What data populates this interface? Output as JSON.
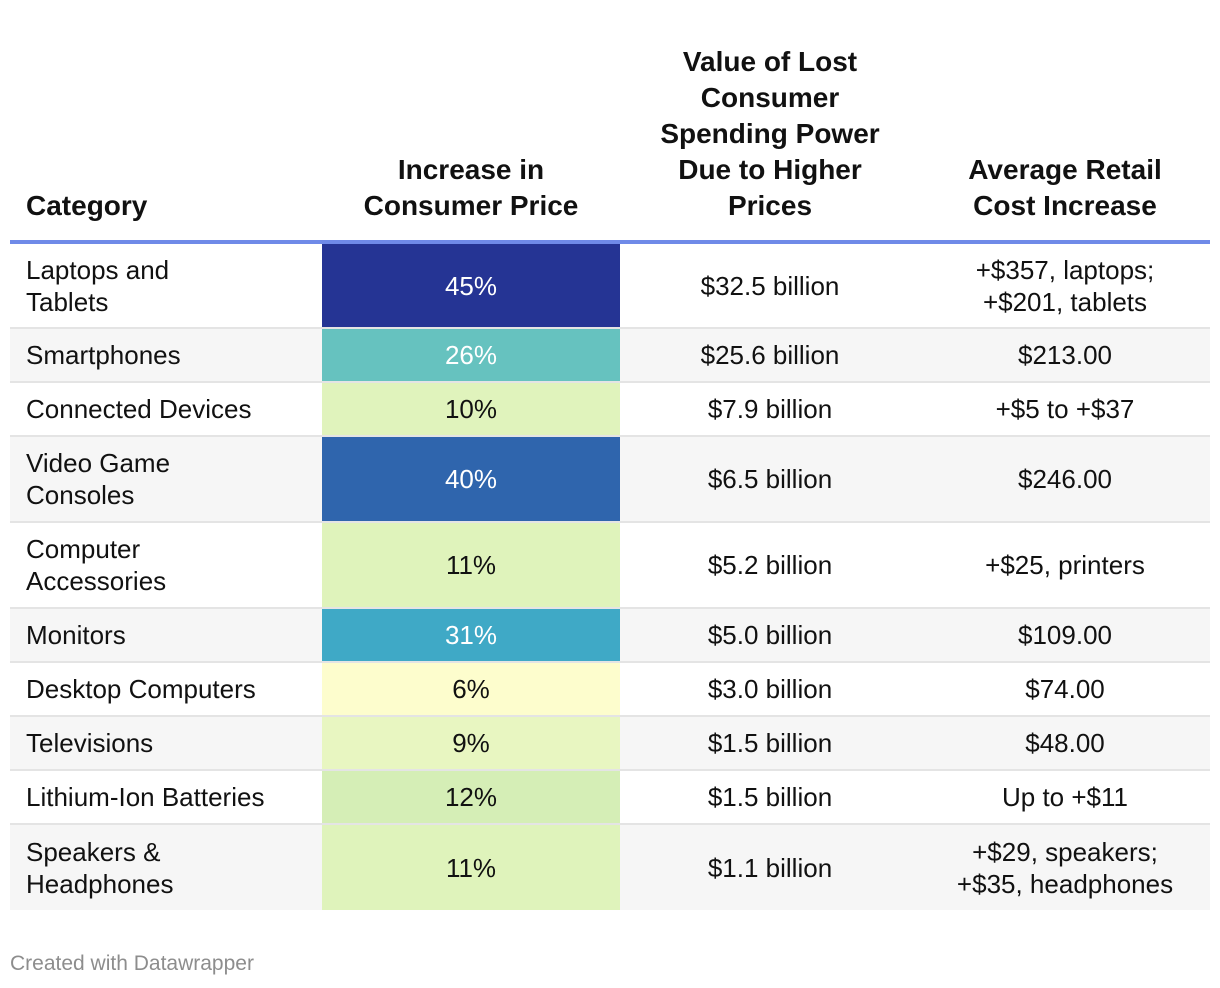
{
  "chart_data": {
    "type": "table",
    "columns": [
      "Category",
      "Increase in Consumer Price",
      "Value of Lost Consumer Spending Power Due to Higher Prices",
      "Average Retail Cost Increase"
    ],
    "rows": [
      {
        "category": "Laptops and Tablets",
        "increase": "45%",
        "increase_value": 45,
        "lost_value": "$32.5 billion",
        "retail_cost": [
          "+$357, laptops;",
          "+$201, tablets"
        ],
        "cell_color": "#253494",
        "height": 86
      },
      {
        "category": "Smartphones",
        "increase": "26%",
        "increase_value": 26,
        "lost_value": "$25.6 billion",
        "retail_cost": [
          "$213.00"
        ],
        "cell_color": "#66c2bf",
        "height": 54
      },
      {
        "category": "Connected Devices",
        "increase": "10%",
        "increase_value": 10,
        "lost_value": "$7.9 billion",
        "retail_cost": [
          "+$5 to +$37"
        ],
        "cell_color": "#e0f3bc",
        "height": 54
      },
      {
        "category": "Video Game Consoles",
        "increase": "40%",
        "increase_value": 40,
        "lost_value": "$6.5 billion",
        "retail_cost": [
          "$246.00"
        ],
        "cell_color": "#2f65ad",
        "height": 86
      },
      {
        "category": "Computer Accessories",
        "increase": "11%",
        "increase_value": 11,
        "lost_value": "$5.2 billion",
        "retail_cost": [
          "+$25, printers"
        ],
        "cell_color": "#dff3bb",
        "height": 86
      },
      {
        "category": "Monitors",
        "increase": "31%",
        "increase_value": 31,
        "lost_value": "$5.0 billion",
        "retail_cost": [
          "$109.00"
        ],
        "cell_color": "#3fa9c6",
        "height": 54
      },
      {
        "category": "Desktop Computers",
        "increase": "6%",
        "increase_value": 6,
        "lost_value": "$3.0 billion",
        "retail_cost": [
          "$74.00"
        ],
        "cell_color": "#fdfdcd",
        "height": 54
      },
      {
        "category": "Televisions",
        "increase": "9%",
        "increase_value": 9,
        "lost_value": "$1.5 billion",
        "retail_cost": [
          "$48.00"
        ],
        "cell_color": "#e8f6c1",
        "height": 54
      },
      {
        "category": "Lithium-Ion Batteries",
        "increase": "12%",
        "increase_value": 12,
        "lost_value": "$1.5 billion",
        "retail_cost": [
          "Up to +$11"
        ],
        "cell_color": "#d5eeb6",
        "height": 54
      },
      {
        "category": "Speakers & Headphones",
        "increase": "11%",
        "increase_value": 11,
        "lost_value": "$1.1 billion",
        "retail_cost": [
          "+$29, speakers;",
          "+$35, headphones"
        ],
        "cell_color": "#dff3bb",
        "height": 86
      }
    ],
    "header_line_color": "#6f8ae8"
  },
  "footer": {
    "credit": "Created with Datawrapper"
  }
}
